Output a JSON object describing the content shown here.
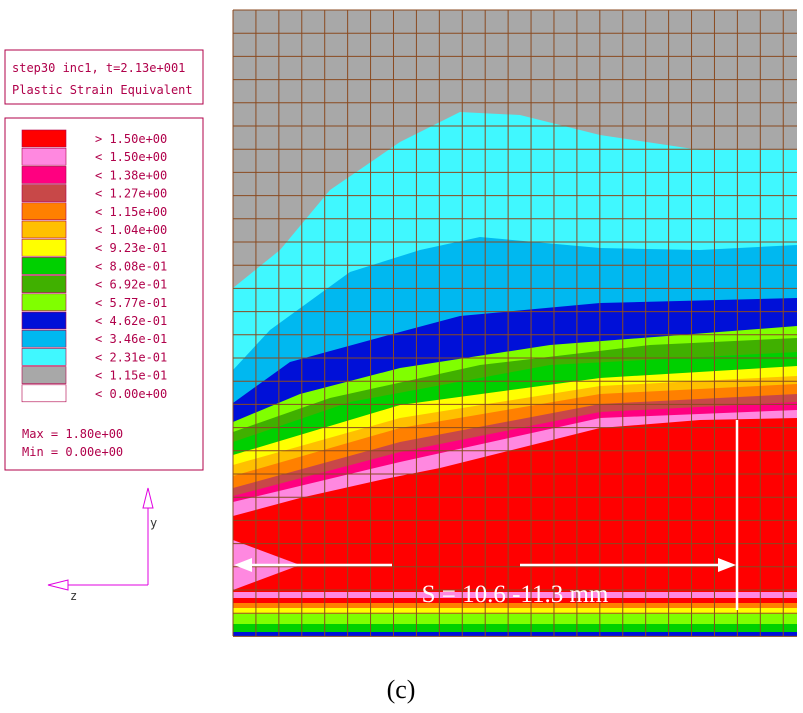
{
  "header": {
    "line1": "step30 inc1, t=2.13e+001",
    "line2": "Plastic Strain Equivalent"
  },
  "legend": [
    {
      "color": "#ff0000",
      "label": "> 1.50e+00"
    },
    {
      "color": "#ff88e0",
      "label": "< 1.50e+00"
    },
    {
      "color": "#ff0080",
      "label": "< 1.38e+00"
    },
    {
      "color": "#c84848",
      "label": "< 1.27e+00"
    },
    {
      "color": "#ff8000",
      "label": "< 1.15e+00"
    },
    {
      "color": "#ffc000",
      "label": "< 1.04e+00"
    },
    {
      "color": "#ffff00",
      "label": "< 9.23e-01"
    },
    {
      "color": "#00d000",
      "label": "< 8.08e-01"
    },
    {
      "color": "#40b000",
      "label": "< 6.92e-01"
    },
    {
      "color": "#80ff00",
      "label": "< 5.77e-01"
    },
    {
      "color": "#0010d8",
      "label": "< 4.62e-01"
    },
    {
      "color": "#00b8f0",
      "label": "< 3.46e-01"
    },
    {
      "color": "#40f8ff",
      "label": "< 2.31e-01"
    },
    {
      "color": "#a8a8a8",
      "label": "< 1.15e-01"
    },
    {
      "color": "#ffffff",
      "label": "< 0.00e+00"
    }
  ],
  "max": "Max = 1.80e+00",
  "min": "Min = 0.00e+00",
  "axes": {
    "y": "y",
    "z": "z"
  },
  "annotation": "S = 10.6 -11.3 mm",
  "caption": "(c)"
}
